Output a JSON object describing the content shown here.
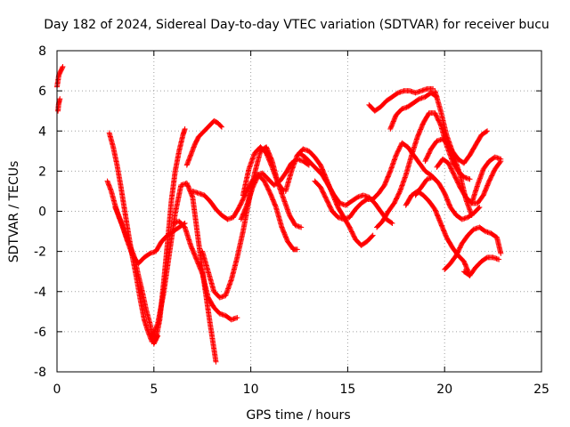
{
  "chart_data": {
    "type": "scatter",
    "title": "Day 182 of 2024, Sidereal Day-to-day VTEC variation (SDTVAR) for receiver bucu",
    "xlabel": "GPS time / hours",
    "ylabel": "SDTVAR / TECUs",
    "xlim": [
      0,
      25
    ],
    "ylim": [
      -8,
      8
    ],
    "xticks": [
      "0",
      "5",
      "10",
      "15",
      "20",
      "25"
    ],
    "yticks": [
      "8",
      "6",
      "4",
      "2",
      "0",
      "-2",
      "-4",
      "-6",
      "-8"
    ],
    "grid": true,
    "marker": "plus",
    "color": "#ff0000",
    "series": [
      {
        "x": [
          0.0,
          0.05,
          0.1,
          0.15,
          0.2,
          0.25,
          0.3
        ],
        "y": [
          6.2,
          6.5,
          6.8,
          6.9,
          7.0,
          7.1,
          7.2
        ]
      },
      {
        "x": [
          0.05,
          0.08,
          0.12,
          0.15
        ],
        "y": [
          5.0,
          5.3,
          5.5,
          5.6
        ]
      },
      {
        "x": [
          2.7,
          2.9,
          3.1,
          3.3,
          3.5,
          3.7,
          3.9,
          4.1,
          4.3,
          4.5,
          4.7,
          4.9,
          5.1,
          5.3,
          5.5,
          5.7,
          5.9,
          6.1,
          6.3,
          6.5,
          6.6
        ],
        "y": [
          3.9,
          3.2,
          2.3,
          1.2,
          0.0,
          -1.2,
          -2.3,
          -3.3,
          -4.4,
          -5.4,
          -6.0,
          -6.5,
          -6.4,
          -5.4,
          -3.6,
          -1.6,
          0.5,
          2.0,
          3.0,
          3.8,
          4.1
        ]
      },
      {
        "x": [
          2.6,
          2.8,
          3.0,
          3.2,
          3.4,
          3.6,
          3.8,
          4.0,
          4.2,
          4.4,
          4.6,
          4.8,
          5.0,
          5.2
        ],
        "y": [
          1.5,
          1.0,
          0.3,
          -0.3,
          -0.8,
          -1.3,
          -1.8,
          -2.3,
          -3.2,
          -4.0,
          -4.9,
          -5.6,
          -6.6,
          -6.2
        ]
      },
      {
        "x": [
          3.0,
          3.3,
          3.6,
          3.9,
          4.2,
          4.5,
          4.8,
          5.1,
          5.4,
          5.7,
          6.0,
          6.3,
          6.6
        ],
        "y": [
          0.2,
          -0.5,
          -1.4,
          -2.2,
          -2.6,
          -2.3,
          -2.1,
          -2.0,
          -1.5,
          -1.2,
          -1.0,
          -0.8,
          -0.6
        ]
      },
      {
        "x": [
          6.7,
          6.9,
          7.1,
          7.3,
          7.5,
          7.7,
          7.9,
          8.1,
          8.3,
          8.5
        ],
        "y": [
          2.3,
          2.8,
          3.3,
          3.7,
          3.9,
          4.1,
          4.3,
          4.5,
          4.4,
          4.2
        ]
      },
      {
        "x": [
          4.9,
          5.2,
          5.5,
          5.8,
          6.1,
          6.4,
          6.7,
          7.0,
          7.3,
          7.6,
          7.9,
          8.2
        ],
        "y": [
          -6.3,
          -5.6,
          -4.1,
          -2.1,
          -0.1,
          1.3,
          1.4,
          0.7,
          -1.5,
          -3.6,
          -5.6,
          -7.5
        ]
      },
      {
        "x": [
          6.0,
          6.3,
          6.6,
          6.9,
          7.2,
          7.5,
          7.8,
          8.1,
          8.4,
          8.7,
          9.0,
          9.3
        ],
        "y": [
          -0.6,
          -0.5,
          -0.8,
          -1.7,
          -2.4,
          -3.1,
          -4.3,
          -4.8,
          -5.1,
          -5.2,
          -5.4,
          -5.3
        ]
      },
      {
        "x": [
          7.0,
          7.3,
          7.6,
          7.9,
          8.2,
          8.5,
          8.8,
          9.1,
          9.4,
          9.7,
          10.0,
          10.3,
          10.6,
          10.9,
          11.2,
          11.5,
          11.8,
          12.1,
          12.4,
          12.7,
          13.0
        ],
        "y": [
          1.0,
          0.9,
          0.8,
          0.5,
          0.1,
          -0.2,
          -0.4,
          -0.3,
          0.2,
          0.8,
          1.4,
          1.8,
          1.9,
          1.6,
          1.3,
          1.5,
          1.9,
          2.4,
          2.6,
          2.5,
          2.3
        ]
      },
      {
        "x": [
          7.5,
          7.8,
          8.1,
          8.4,
          8.7,
          9.0,
          9.3,
          9.6,
          9.9,
          10.2,
          10.5,
          10.8,
          11.1,
          11.4,
          11.7
        ],
        "y": [
          -2.0,
          -3.0,
          -4.0,
          -4.3,
          -4.2,
          -3.4,
          -2.3,
          -1.0,
          0.5,
          1.9,
          3.0,
          3.2,
          2.5,
          1.4,
          1.0
        ]
      },
      {
        "x": [
          9.5,
          9.8,
          10.1,
          10.4,
          10.7,
          11.0,
          11.3,
          11.6,
          11.9,
          12.2,
          12.4
        ],
        "y": [
          -0.4,
          0.3,
          1.2,
          1.8,
          1.5,
          0.9,
          0.2,
          -0.8,
          -1.5,
          -1.9,
          -1.9
        ]
      },
      {
        "x": [
          9.6,
          9.9,
          10.2,
          10.5,
          10.8,
          11.1,
          11.4,
          11.7,
          12.0,
          12.3,
          12.6
        ],
        "y": [
          0.8,
          2.1,
          2.9,
          3.2,
          2.9,
          2.2,
          1.4,
          0.6,
          -0.2,
          -0.7,
          -0.8
        ]
      },
      {
        "x": [
          11.8,
          12.1,
          12.4,
          12.7,
          13.0,
          13.3,
          13.6,
          13.9,
          14.2,
          14.5,
          14.8,
          15.1,
          15.4,
          15.7,
          16.0,
          16.3
        ],
        "y": [
          1.0,
          2.0,
          2.8,
          3.1,
          3.0,
          2.7,
          2.3,
          1.6,
          0.9,
          0.2,
          -0.3,
          -0.8,
          -1.4,
          -1.7,
          -1.5,
          -1.2
        ]
      },
      {
        "x": [
          12.5,
          12.8,
          13.1,
          13.4,
          13.7,
          14.0,
          14.3,
          14.6,
          14.9,
          15.2,
          15.5,
          15.8,
          16.1,
          16.4,
          16.7,
          17.0,
          17.3
        ],
        "y": [
          2.9,
          2.7,
          2.4,
          2.1,
          1.8,
          1.3,
          0.8,
          0.4,
          0.3,
          0.5,
          0.7,
          0.8,
          0.7,
          0.4,
          0.0,
          -0.4,
          -0.6
        ]
      },
      {
        "x": [
          13.3,
          13.6,
          13.9,
          14.2,
          14.5,
          14.8,
          15.1,
          15.4,
          15.7,
          16.0,
          16.3,
          16.6,
          16.9,
          17.2,
          17.5,
          17.8,
          18.1,
          18.4,
          18.7,
          19.0,
          19.3,
          19.6
        ],
        "y": [
          1.5,
          1.2,
          0.6,
          0.0,
          -0.3,
          -0.4,
          -0.3,
          0.1,
          0.4,
          0.6,
          0.6,
          0.9,
          1.3,
          2.0,
          2.8,
          3.4,
          3.2,
          2.8,
          2.4,
          2.0,
          1.8,
          1.5
        ]
      },
      {
        "x": [
          16.1,
          16.4,
          16.7,
          17.0,
          17.3,
          17.6,
          17.9,
          18.2,
          18.5,
          18.8,
          19.1,
          19.4
        ],
        "y": [
          5.3,
          5.0,
          5.2,
          5.5,
          5.7,
          5.9,
          6.0,
          6.0,
          5.9,
          6.0,
          6.1,
          6.1
        ]
      },
      {
        "x": [
          17.2,
          17.5,
          17.8,
          18.1,
          18.4,
          18.7,
          19.0,
          19.3,
          19.6
        ],
        "y": [
          4.1,
          4.8,
          5.1,
          5.2,
          5.4,
          5.6,
          5.7,
          5.9,
          5.7
        ]
      },
      {
        "x": [
          16.5,
          16.8,
          17.1,
          17.4,
          17.7,
          18.0,
          18.3,
          18.6,
          18.9,
          19.2,
          19.5,
          19.8,
          20.1,
          20.4,
          20.7,
          21.0,
          21.3
        ],
        "y": [
          -0.8,
          -0.5,
          0.0,
          0.4,
          1.0,
          1.8,
          2.8,
          3.7,
          4.4,
          4.9,
          4.9,
          4.3,
          3.3,
          2.5,
          2.0,
          1.7,
          1.6
        ]
      },
      {
        "x": [
          18.0,
          18.3,
          18.6,
          18.9,
          19.2,
          19.5,
          19.8,
          20.1,
          20.4,
          20.7,
          21.0,
          21.3
        ],
        "y": [
          0.3,
          0.8,
          1.0,
          0.8,
          0.5,
          0.1,
          -0.6,
          -1.3,
          -1.8,
          -2.2,
          -2.5,
          -3.2
        ]
      },
      {
        "x": [
          18.5,
          18.8,
          19.1,
          19.4,
          19.7,
          20.0,
          20.3,
          20.6,
          20.9,
          21.2,
          21.5,
          21.8
        ],
        "y": [
          0.8,
          1.2,
          1.6,
          1.7,
          1.4,
          0.9,
          0.2,
          -0.2,
          -0.4,
          -0.3,
          -0.1,
          0.2
        ]
      },
      {
        "x": [
          19.5,
          19.8,
          20.1,
          20.4,
          20.7,
          21.0,
          21.3,
          21.6,
          21.9,
          22.2
        ],
        "y": [
          6.0,
          5.0,
          3.8,
          3.0,
          2.6,
          2.4,
          2.8,
          3.3,
          3.8,
          4.0
        ]
      },
      {
        "x": [
          19.6,
          19.9,
          20.2,
          20.5,
          20.8,
          21.1,
          21.4,
          21.7,
          22.0,
          22.3,
          22.6,
          22.9
        ],
        "y": [
          2.2,
          2.6,
          2.4,
          1.8,
          1.2,
          0.7,
          0.4,
          0.4,
          0.8,
          1.5,
          2.1,
          2.5
        ]
      },
      {
        "x": [
          20.0,
          20.3,
          20.6,
          20.9,
          21.2,
          21.5,
          21.8,
          22.1,
          22.4,
          22.7,
          22.9
        ],
        "y": [
          -2.9,
          -2.6,
          -2.2,
          -1.6,
          -1.2,
          -0.9,
          -0.8,
          -1.0,
          -1.1,
          -1.3,
          -2.1
        ]
      },
      {
        "x": [
          21.0,
          21.3,
          21.6,
          21.9,
          22.2,
          22.5,
          22.8
        ],
        "y": [
          -3.0,
          -3.2,
          -2.8,
          -2.5,
          -2.3,
          -2.3,
          -2.4
        ]
      },
      {
        "x": [
          21.4,
          21.7,
          22.0,
          22.3,
          22.6,
          22.9
        ],
        "y": [
          0.4,
          1.3,
          2.1,
          2.5,
          2.7,
          2.6
        ]
      },
      {
        "x": [
          19.0,
          19.3,
          19.6,
          19.9,
          20.2,
          20.5,
          20.8,
          21.1,
          21.4
        ],
        "y": [
          2.5,
          3.1,
          3.5,
          3.6,
          3.3,
          2.7,
          1.8,
          0.6,
          -0.2
        ]
      }
    ]
  }
}
